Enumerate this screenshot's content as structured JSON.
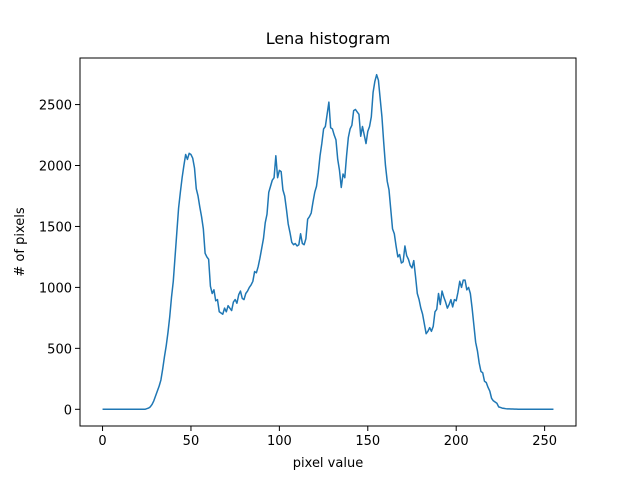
{
  "chart_data": {
    "type": "line",
    "title": "Lena histogram",
    "x_label": "pixel value",
    "y_label": "# of pixels",
    "color": "#1f77b4",
    "grid": false,
    "x": [
      0,
      1,
      2,
      3,
      4,
      5,
      6,
      7,
      8,
      9,
      10,
      11,
      12,
      13,
      14,
      15,
      16,
      17,
      18,
      19,
      20,
      21,
      22,
      23,
      24,
      25,
      26,
      27,
      28,
      29,
      30,
      31,
      32,
      33,
      34,
      35,
      36,
      37,
      38,
      39,
      40,
      41,
      42,
      43,
      44,
      45,
      46,
      47,
      48,
      49,
      50,
      51,
      52,
      53,
      54,
      55,
      56,
      57,
      58,
      59,
      60,
      61,
      62,
      63,
      64,
      65,
      66,
      67,
      68,
      69,
      70,
      71,
      72,
      73,
      74,
      75,
      76,
      77,
      78,
      79,
      80,
      81,
      82,
      83,
      84,
      85,
      86,
      87,
      88,
      89,
      90,
      91,
      92,
      93,
      94,
      95,
      96,
      97,
      98,
      99,
      100,
      101,
      102,
      103,
      104,
      105,
      106,
      107,
      108,
      109,
      110,
      111,
      112,
      113,
      114,
      115,
      116,
      117,
      118,
      119,
      120,
      121,
      122,
      123,
      124,
      125,
      126,
      127,
      128,
      129,
      130,
      131,
      132,
      133,
      134,
      135,
      136,
      137,
      138,
      139,
      140,
      141,
      142,
      143,
      144,
      145,
      146,
      147,
      148,
      149,
      150,
      151,
      152,
      153,
      154,
      155,
      156,
      157,
      158,
      159,
      160,
      161,
      162,
      163,
      164,
      165,
      166,
      167,
      168,
      169,
      170,
      171,
      172,
      173,
      174,
      175,
      176,
      177,
      178,
      179,
      180,
      181,
      182,
      183,
      184,
      185,
      186,
      187,
      188,
      189,
      190,
      191,
      192,
      193,
      194,
      195,
      196,
      197,
      198,
      199,
      200,
      201,
      202,
      203,
      204,
      205,
      206,
      207,
      208,
      209,
      210,
      211,
      212,
      213,
      214,
      215,
      216,
      217,
      218,
      219,
      220,
      221,
      222,
      223,
      224,
      225,
      226,
      227,
      228,
      229,
      230,
      231,
      232,
      233,
      234,
      235,
      236,
      237,
      238,
      239,
      240,
      241,
      242,
      243,
      244,
      245,
      246,
      247,
      248,
      249,
      250,
      251,
      252,
      253,
      254,
      255
    ],
    "values": [
      0,
      0,
      0,
      0,
      0,
      0,
      0,
      0,
      0,
      0,
      0,
      0,
      0,
      0,
      0,
      0,
      0,
      0,
      0,
      0,
      0,
      0,
      0,
      0,
      0,
      5,
      10,
      20,
      40,
      70,
      110,
      150,
      190,
      240,
      330,
      430,
      520,
      630,
      760,
      920,
      1050,
      1250,
      1450,
      1650,
      1780,
      1900,
      2000,
      2090,
      2050,
      2100,
      2090,
      2060,
      1980,
      1810,
      1750,
      1660,
      1580,
      1480,
      1280,
      1250,
      1230,
      1010,
      950,
      980,
      890,
      900,
      800,
      790,
      780,
      830,
      800,
      850,
      830,
      810,
      880,
      900,
      870,
      940,
      970,
      910,
      900,
      950,
      970,
      1000,
      1020,
      1050,
      1130,
      1120,
      1170,
      1240,
      1320,
      1400,
      1530,
      1600,
      1780,
      1830,
      1880,
      1900,
      2080,
      1900,
      1960,
      1950,
      1800,
      1750,
      1640,
      1520,
      1450,
      1370,
      1350,
      1360,
      1340,
      1350,
      1440,
      1360,
      1350,
      1400,
      1560,
      1580,
      1610,
      1700,
      1780,
      1830,
      1940,
      2080,
      2180,
      2300,
      2320,
      2420,
      2520,
      2310,
      2300,
      2250,
      2210,
      2050,
      1960,
      1820,
      1930,
      1900,
      2080,
      2230,
      2300,
      2330,
      2450,
      2460,
      2440,
      2420,
      2240,
      2320,
      2250,
      2180,
      2280,
      2320,
      2400,
      2600,
      2690,
      2745,
      2700,
      2550,
      2400,
      2190,
      2000,
      1870,
      1800,
      1640,
      1480,
      1440,
      1340,
      1250,
      1270,
      1200,
      1210,
      1340,
      1260,
      1230,
      1180,
      1160,
      1220,
      1090,
      950,
      900,
      830,
      780,
      700,
      620,
      640,
      670,
      640,
      680,
      800,
      820,
      950,
      860,
      970,
      920,
      880,
      830,
      860,
      900,
      840,
      900,
      890,
      960,
      1050,
      1000,
      1060,
      1060,
      980,
      1000,
      950,
      830,
      690,
      550,
      480,
      380,
      310,
      300,
      230,
      220,
      180,
      150,
      90,
      70,
      60,
      50,
      20,
      15,
      10,
      8,
      5,
      3,
      3,
      2,
      2,
      1,
      1,
      0,
      0,
      0,
      0,
      0,
      0,
      0,
      0,
      0,
      0,
      0,
      0,
      0,
      0,
      0,
      0,
      0,
      0,
      0,
      0,
      0
    ],
    "xlim": [
      -12.75,
      267.75
    ],
    "xticks": [
      0,
      50,
      100,
      150,
      200,
      250
    ],
    "ylim": [
      -137,
      2882
    ],
    "yticks": [
      0,
      500,
      1000,
      1500,
      2000,
      2500
    ]
  }
}
